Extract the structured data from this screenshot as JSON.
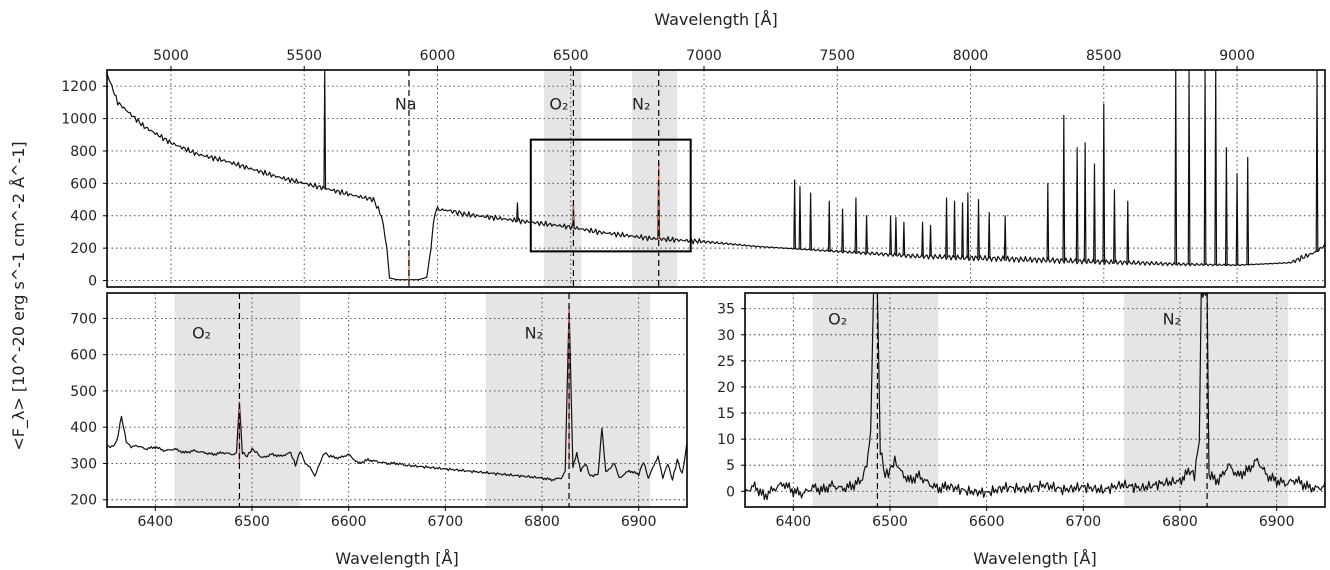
{
  "figure": {
    "colors": {
      "spectrum": "#111111",
      "sky_line": "#e8654f",
      "band": "#dcdcdc"
    },
    "ylabel_shared": "<F_λ> [10^-20 erg s^-1 cm^-2 Å^-1]"
  },
  "chart_data": [
    {
      "id": "top",
      "type": "line",
      "xlabel": "Wavelength [Å]",
      "xlabel_position": "top",
      "xlim": [
        4760,
        9330
      ],
      "ylim": [
        -40,
        1300
      ],
      "xticks": [
        5000,
        5500,
        6000,
        6500,
        7000,
        7500,
        8000,
        8500,
        9000
      ],
      "yticks": [
        0,
        200,
        400,
        600,
        800,
        1000,
        1200
      ],
      "grid": true,
      "bands": [
        [
          6400,
          6540
        ],
        [
          6730,
          6900
        ]
      ],
      "vlines": [
        5893,
        6510,
        6830
      ],
      "annotations": [
        {
          "text": "Na",
          "x": 5840,
          "y": 1055
        },
        {
          "text": "O₂",
          "x": 6420,
          "y": 1055
        },
        {
          "text": "N₂",
          "x": 6730,
          "y": 1055
        }
      ],
      "zoom_box": {
        "x": [
          6350,
          6950
        ],
        "y": [
          180,
          870
        ]
      },
      "continuum": [
        [
          4760,
          1280
        ],
        [
          4800,
          1100
        ],
        [
          4900,
          950
        ],
        [
          5000,
          850
        ],
        [
          5100,
          780
        ],
        [
          5200,
          740
        ],
        [
          5300,
          690
        ],
        [
          5400,
          640
        ],
        [
          5500,
          600
        ],
        [
          5600,
          560
        ],
        [
          5700,
          520
        ],
        [
          5760,
          500
        ],
        [
          5790,
          400
        ],
        [
          5810,
          200
        ],
        [
          5820,
          15
        ],
        [
          5850,
          5
        ],
        [
          5930,
          5
        ],
        [
          5960,
          20
        ],
        [
          5975,
          200
        ],
        [
          5990,
          420
        ],
        [
          6000,
          440
        ],
        [
          6050,
          430
        ],
        [
          6100,
          410
        ],
        [
          6200,
          390
        ],
        [
          6300,
          370
        ],
        [
          6400,
          350
        ],
        [
          6500,
          330
        ],
        [
          6600,
          300
        ],
        [
          6700,
          280
        ],
        [
          6800,
          260
        ],
        [
          6900,
          250
        ],
        [
          7000,
          240
        ],
        [
          7200,
          210
        ],
        [
          7400,
          190
        ],
        [
          7600,
          170
        ],
        [
          7800,
          150
        ],
        [
          8000,
          140
        ],
        [
          8200,
          130
        ],
        [
          8400,
          120
        ],
        [
          8600,
          110
        ],
        [
          8800,
          100
        ],
        [
          9000,
          95
        ],
        [
          9200,
          110
        ],
        [
          9300,
          180
        ],
        [
          9330,
          220
        ]
      ],
      "emission_lines": [
        [
          5577,
          1300
        ],
        [
          6300,
          480
        ],
        [
          6510,
          470
        ],
        [
          6830,
          720
        ],
        [
          7340,
          620
        ],
        [
          7360,
          580
        ],
        [
          7400,
          540
        ],
        [
          7470,
          490
        ],
        [
          7520,
          440
        ],
        [
          7570,
          510
        ],
        [
          7610,
          400
        ],
        [
          7700,
          400
        ],
        [
          7720,
          390
        ],
        [
          7750,
          360
        ],
        [
          7820,
          360
        ],
        [
          7850,
          340
        ],
        [
          7910,
          510
        ],
        [
          7940,
          490
        ],
        [
          7970,
          480
        ],
        [
          7990,
          540
        ],
        [
          8030,
          500
        ],
        [
          8070,
          420
        ],
        [
          8130,
          400
        ],
        [
          8290,
          600
        ],
        [
          8350,
          1020
        ],
        [
          8400,
          820
        ],
        [
          8430,
          850
        ],
        [
          8465,
          720
        ],
        [
          8500,
          1090
        ],
        [
          8540,
          560
        ],
        [
          8590,
          490
        ],
        [
          8770,
          1300
        ],
        [
          8820,
          1300
        ],
        [
          8880,
          1300
        ],
        [
          8920,
          1300
        ],
        [
          8960,
          820
        ],
        [
          9000,
          660
        ],
        [
          9040,
          760
        ],
        [
          9300,
          1300
        ]
      ],
      "sky_lines_red": [
        5893,
        6510,
        6830
      ]
    },
    {
      "id": "bottom-left",
      "type": "line",
      "xlabel": "Wavelength [Å]",
      "xlim": [
        6350,
        6950
      ],
      "ylim": [
        180,
        770
      ],
      "xticks": [
        6400,
        6500,
        6600,
        6700,
        6800,
        6900
      ],
      "yticks": [
        200,
        300,
        400,
        500,
        600,
        700
      ],
      "grid": true,
      "bands": [
        [
          6420,
          6550
        ],
        [
          6742,
          6912
        ]
      ],
      "vlines": [
        6487,
        6828
      ],
      "annotations": [
        {
          "text": "O₂",
          "x": 6438,
          "y": 645
        },
        {
          "text": "N₂",
          "x": 6782,
          "y": 645
        }
      ],
      "points": [
        [
          6350,
          350
        ],
        [
          6355,
          345
        ],
        [
          6360,
          360
        ],
        [
          6365,
          430
        ],
        [
          6370,
          360
        ],
        [
          6375,
          345
        ],
        [
          6380,
          350
        ],
        [
          6390,
          340
        ],
        [
          6400,
          345
        ],
        [
          6410,
          335
        ],
        [
          6420,
          340
        ],
        [
          6430,
          330
        ],
        [
          6440,
          335
        ],
        [
          6450,
          330
        ],
        [
          6460,
          325
        ],
        [
          6470,
          330
        ],
        [
          6480,
          325
        ],
        [
          6484,
          330
        ],
        [
          6487,
          470
        ],
        [
          6490,
          330
        ],
        [
          6495,
          320
        ],
        [
          6500,
          340
        ],
        [
          6505,
          330
        ],
        [
          6510,
          315
        ],
        [
          6520,
          325
        ],
        [
          6530,
          320
        ],
        [
          6540,
          330
        ],
        [
          6545,
          295
        ],
        [
          6550,
          335
        ],
        [
          6555,
          300
        ],
        [
          6560,
          290
        ],
        [
          6565,
          265
        ],
        [
          6570,
          300
        ],
        [
          6575,
          330
        ],
        [
          6580,
          320
        ],
        [
          6590,
          315
        ],
        [
          6600,
          325
        ],
        [
          6610,
          300
        ],
        [
          6620,
          310
        ],
        [
          6630,
          305
        ],
        [
          6640,
          300
        ],
        [
          6650,
          300
        ],
        [
          6660,
          295
        ],
        [
          6680,
          290
        ],
        [
          6700,
          285
        ],
        [
          6720,
          280
        ],
        [
          6740,
          275
        ],
        [
          6760,
          270
        ],
        [
          6780,
          265
        ],
        [
          6800,
          260
        ],
        [
          6810,
          255
        ],
        [
          6820,
          260
        ],
        [
          6824,
          280
        ],
        [
          6828,
          730
        ],
        [
          6832,
          290
        ],
        [
          6836,
          330
        ],
        [
          6840,
          280
        ],
        [
          6845,
          300
        ],
        [
          6850,
          265
        ],
        [
          6858,
          270
        ],
        [
          6862,
          400
        ],
        [
          6866,
          275
        ],
        [
          6875,
          300
        ],
        [
          6880,
          260
        ],
        [
          6890,
          280
        ],
        [
          6900,
          270
        ],
        [
          6905,
          305
        ],
        [
          6910,
          260
        ],
        [
          6920,
          320
        ],
        [
          6925,
          260
        ],
        [
          6930,
          300
        ],
        [
          6935,
          255
        ],
        [
          6940,
          310
        ],
        [
          6945,
          270
        ],
        [
          6950,
          355
        ]
      ],
      "red_lines": [
        6487,
        6828
      ]
    },
    {
      "id": "bottom-right",
      "type": "line",
      "xlabel": "Wavelength [Å]",
      "xlim": [
        6350,
        6950
      ],
      "ylim": [
        -3,
        38
      ],
      "xticks": [
        6400,
        6500,
        6600,
        6700,
        6800,
        6900
      ],
      "yticks": [
        0,
        5,
        10,
        15,
        20,
        25,
        30,
        35
      ],
      "grid": true,
      "bands": [
        [
          6420,
          6550
        ],
        [
          6742,
          6912
        ]
      ],
      "vlines": [
        6487,
        6828
      ],
      "annotations": [
        {
          "text": "O₂",
          "x": 6436,
          "y": 32
        },
        {
          "text": "N₂",
          "x": 6782,
          "y": 32
        }
      ],
      "points": [
        [
          6350,
          0
        ],
        [
          6360,
          1
        ],
        [
          6370,
          -1
        ],
        [
          6380,
          0.5
        ],
        [
          6390,
          1.5
        ],
        [
          6400,
          0
        ],
        [
          6410,
          -0.5
        ],
        [
          6420,
          0.8
        ],
        [
          6430,
          0.2
        ],
        [
          6440,
          1.2
        ],
        [
          6450,
          0.5
        ],
        [
          6460,
          1
        ],
        [
          6470,
          2
        ],
        [
          6476,
          5
        ],
        [
          6480,
          12
        ],
        [
          6483,
          38
        ],
        [
          6487,
          38
        ],
        [
          6490,
          8
        ],
        [
          6495,
          3
        ],
        [
          6500,
          4
        ],
        [
          6505,
          6
        ],
        [
          6510,
          4
        ],
        [
          6520,
          2
        ],
        [
          6530,
          3
        ],
        [
          6540,
          1.5
        ],
        [
          6550,
          0.5
        ],
        [
          6560,
          1
        ],
        [
          6580,
          0
        ],
        [
          6600,
          -0.3
        ],
        [
          6620,
          0.8
        ],
        [
          6640,
          0.4
        ],
        [
          6660,
          1.2
        ],
        [
          6680,
          0.3
        ],
        [
          6700,
          0.9
        ],
        [
          6720,
          0.2
        ],
        [
          6740,
          1.3
        ],
        [
          6760,
          0.6
        ],
        [
          6780,
          1.5
        ],
        [
          6800,
          2
        ],
        [
          6810,
          4
        ],
        [
          6815,
          3
        ],
        [
          6820,
          10
        ],
        [
          6822,
          38
        ],
        [
          6828,
          38
        ],
        [
          6830,
          3
        ],
        [
          6840,
          2
        ],
        [
          6850,
          5
        ],
        [
          6860,
          3
        ],
        [
          6870,
          4
        ],
        [
          6880,
          6
        ],
        [
          6890,
          3
        ],
        [
          6900,
          2
        ],
        [
          6910,
          1.5
        ],
        [
          6920,
          2.2
        ],
        [
          6930,
          1
        ],
        [
          6940,
          0.5
        ],
        [
          6950,
          1
        ]
      ]
    }
  ]
}
